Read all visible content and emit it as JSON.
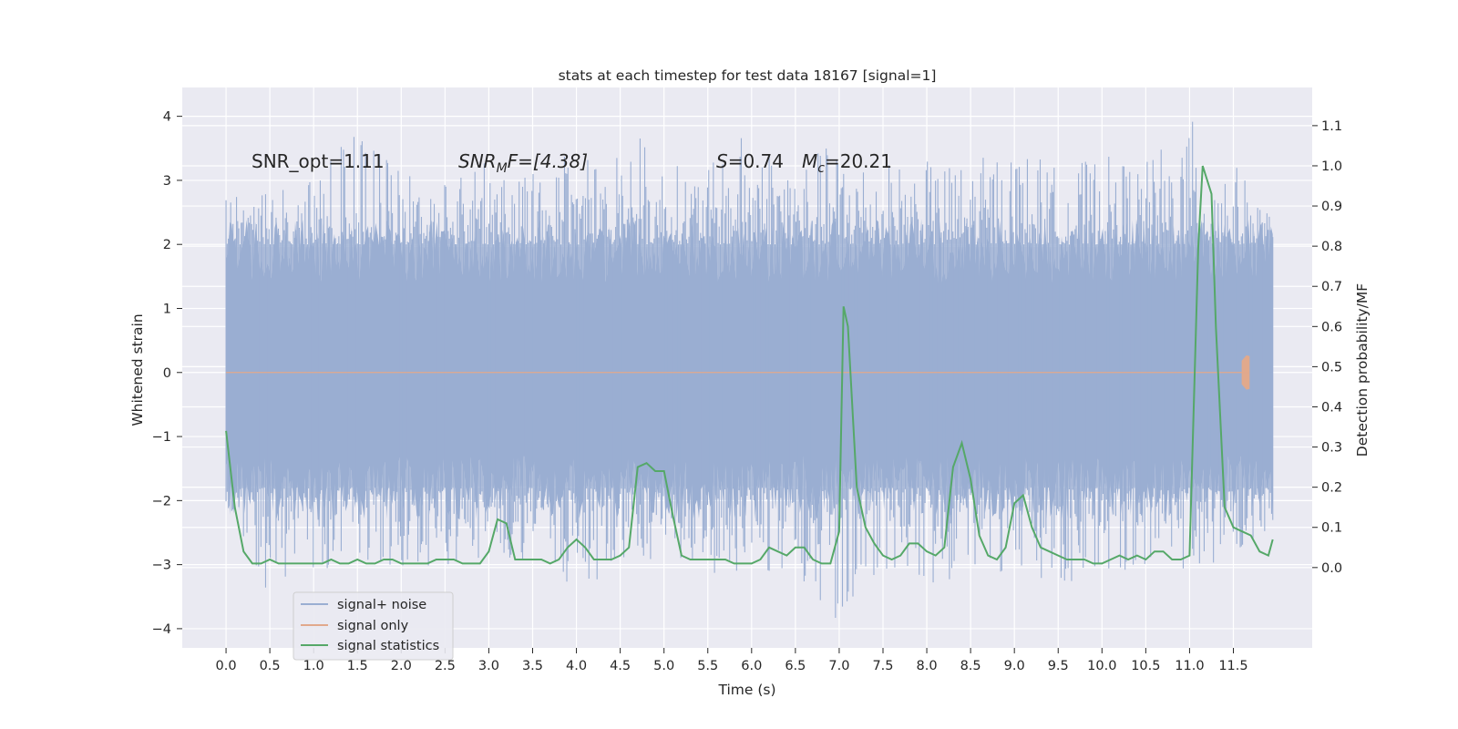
{
  "chart_data": {
    "type": "line",
    "title": "stats at each timestep for test data 18167 [signal=1]",
    "xlabel": "Time (s)",
    "ylabel_left": "Whitened strain",
    "ylabel_right": "Detection probability/MF",
    "xlim": [
      -0.5,
      12.4
    ],
    "ylim_left": [
      -4.3,
      4.45
    ],
    "ylim_right": [
      -0.2,
      1.195
    ],
    "x_ticks": [
      "0.0",
      "0.5",
      "1.0",
      "1.5",
      "2.0",
      "2.5",
      "3.0",
      "3.5",
      "4.0",
      "4.5",
      "5.0",
      "5.5",
      "6.0",
      "6.5",
      "7.0",
      "7.5",
      "8.0",
      "8.5",
      "9.0",
      "9.5",
      "10.0",
      "10.5",
      "11.0",
      "11.5"
    ],
    "y_ticks_left": [
      "−4",
      "−3",
      "−2",
      "−1",
      "0",
      "1",
      "2",
      "3",
      "4"
    ],
    "y_ticks_right": [
      "0.0",
      "0.1",
      "0.2",
      "0.3",
      "0.4",
      "0.5",
      "0.6",
      "0.7",
      "0.8",
      "0.9",
      "1.0",
      "1.1"
    ],
    "grid": true,
    "legend_position": "lower-left",
    "annotations": {
      "snr_opt": "SNR_opt=1.11",
      "snr_mf_main": "SNR",
      "snr_mf_sub": "M",
      "snr_mf_rest": "F=[4.38]",
      "s_label": "S",
      "s_value": "=0.74",
      "mc_label": "M",
      "mc_sub": "c",
      "mc_value": "=20.21"
    },
    "series": [
      {
        "name": "signal+ noise",
        "color": "#9aaed2",
        "axis": "left",
        "envelope": {
          "x": [
            0.0,
            0.5,
            1.0,
            1.5,
            2.0,
            2.5,
            3.0,
            3.5,
            4.0,
            4.5,
            5.0,
            5.5,
            6.0,
            6.5,
            7.0,
            7.5,
            8.0,
            8.5,
            9.0,
            9.5,
            10.0,
            10.5,
            11.0,
            11.5,
            11.95
          ],
          "upper": [
            2.85,
            2.9,
            3.0,
            3.9,
            3.1,
            3.2,
            3.3,
            3.3,
            3.4,
            4.1,
            3.3,
            3.2,
            3.9,
            3.4,
            3.6,
            3.3,
            3.3,
            3.3,
            3.6,
            3.2,
            3.4,
            3.3,
            4.0,
            3.3,
            2.4
          ],
          "lower": [
            -2.05,
            -3.6,
            -3.1,
            -3.0,
            -3.2,
            -3.2,
            -3.1,
            -2.9,
            -3.5,
            -3.3,
            -2.9,
            -3.1,
            -3.4,
            -3.1,
            -4.05,
            -3.0,
            -3.8,
            -3.0,
            -3.2,
            -3.3,
            -3.2,
            -3.0,
            -3.1,
            -2.9,
            -2.4
          ]
        }
      },
      {
        "name": "signal only",
        "color": "#e1a98c",
        "axis": "left",
        "x": [
          0.0,
          10.5,
          11.0,
          11.3,
          11.5,
          11.6,
          11.65,
          11.68
        ],
        "amplitude": [
          0.0,
          0.0,
          0.02,
          0.05,
          0.1,
          0.18,
          0.26,
          0.25
        ]
      },
      {
        "name": "signal statistics",
        "color": "#55a868",
        "axis": "right",
        "x": [
          0.0,
          0.1,
          0.2,
          0.3,
          0.4,
          0.5,
          0.6,
          0.7,
          0.8,
          0.9,
          1.0,
          1.1,
          1.2,
          1.3,
          1.4,
          1.5,
          1.6,
          1.7,
          1.8,
          1.9,
          2.0,
          2.1,
          2.2,
          2.3,
          2.4,
          2.5,
          2.6,
          2.7,
          2.8,
          2.9,
          3.0,
          3.1,
          3.2,
          3.3,
          3.4,
          3.5,
          3.6,
          3.7,
          3.8,
          3.9,
          4.0,
          4.1,
          4.2,
          4.3,
          4.4,
          4.5,
          4.6,
          4.7,
          4.8,
          4.9,
          5.0,
          5.1,
          5.2,
          5.3,
          5.4,
          5.5,
          5.6,
          5.7,
          5.8,
          5.9,
          6.0,
          6.1,
          6.2,
          6.3,
          6.4,
          6.5,
          6.6,
          6.7,
          6.8,
          6.9,
          7.0,
          7.05,
          7.1,
          7.2,
          7.3,
          7.4,
          7.5,
          7.6,
          7.7,
          7.8,
          7.9,
          8.0,
          8.1,
          8.2,
          8.3,
          8.4,
          8.5,
          8.6,
          8.7,
          8.8,
          8.9,
          9.0,
          9.1,
          9.2,
          9.3,
          9.4,
          9.5,
          9.6,
          9.7,
          9.8,
          9.9,
          10.0,
          10.1,
          10.2,
          10.3,
          10.4,
          10.5,
          10.6,
          10.7,
          10.8,
          10.9,
          11.0,
          11.1,
          11.15,
          11.25,
          11.3,
          11.4,
          11.5,
          11.6,
          11.7,
          11.8,
          11.9,
          11.95
        ],
        "values": [
          0.34,
          0.15,
          0.04,
          0.01,
          0.01,
          0.02,
          0.01,
          0.01,
          0.01,
          0.01,
          0.01,
          0.01,
          0.02,
          0.01,
          0.01,
          0.02,
          0.01,
          0.01,
          0.02,
          0.02,
          0.01,
          0.01,
          0.01,
          0.01,
          0.02,
          0.02,
          0.02,
          0.01,
          0.01,
          0.01,
          0.04,
          0.12,
          0.11,
          0.02,
          0.02,
          0.02,
          0.02,
          0.01,
          0.02,
          0.05,
          0.07,
          0.05,
          0.02,
          0.02,
          0.02,
          0.03,
          0.05,
          0.25,
          0.26,
          0.24,
          0.24,
          0.13,
          0.03,
          0.02,
          0.02,
          0.02,
          0.02,
          0.02,
          0.01,
          0.01,
          0.01,
          0.02,
          0.05,
          0.04,
          0.03,
          0.05,
          0.05,
          0.02,
          0.01,
          0.01,
          0.09,
          0.65,
          0.6,
          0.2,
          0.1,
          0.06,
          0.03,
          0.02,
          0.03,
          0.06,
          0.06,
          0.04,
          0.03,
          0.05,
          0.25,
          0.31,
          0.22,
          0.08,
          0.03,
          0.02,
          0.05,
          0.16,
          0.18,
          0.1,
          0.05,
          0.04,
          0.03,
          0.02,
          0.02,
          0.02,
          0.01,
          0.01,
          0.02,
          0.03,
          0.02,
          0.03,
          0.02,
          0.04,
          0.04,
          0.02,
          0.02,
          0.03,
          0.8,
          1.0,
          0.93,
          0.6,
          0.15,
          0.1,
          0.09,
          0.08,
          0.04,
          0.03,
          0.07
        ]
      }
    ]
  }
}
